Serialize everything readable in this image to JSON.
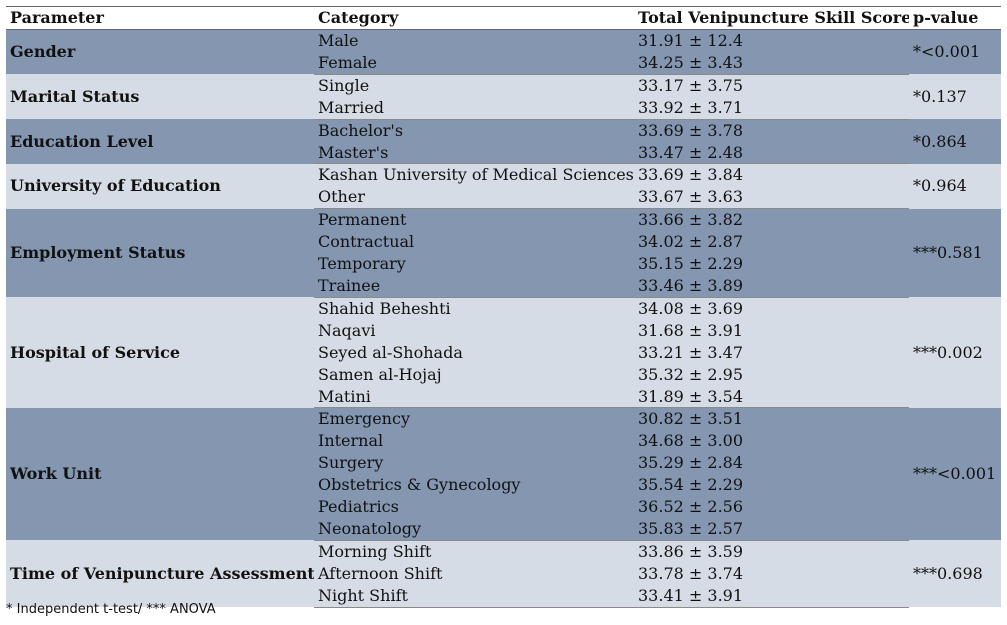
{
  "headers": [
    "Parameter",
    "Category",
    "Total Venipuncture Skill Score",
    "p-value"
  ],
  "groups": [
    {
      "parameter": "Gender",
      "p_value": "*<0.001",
      "shade": "dark",
      "rows": [
        {
          "category": "Male",
          "score": "31.91 ± 12.4"
        },
        {
          "category": "Female",
          "score": "34.25 ± 3.43"
        }
      ]
    },
    {
      "parameter": "Marital Status",
      "p_value": "*0.137",
      "shade": "light",
      "rows": [
        {
          "category": "Single",
          "score": "33.17 ± 3.75"
        },
        {
          "category": "Married",
          "score": "33.92 ± 3.71"
        }
      ]
    },
    {
      "parameter": "Education Level",
      "p_value": "*0.864",
      "shade": "dark",
      "rows": [
        {
          "category": "Bachelor's",
          "score": "33.69 ± 3.78"
        },
        {
          "category": "Master's",
          "score": "33.47 ± 2.48"
        }
      ]
    },
    {
      "parameter": "University of Education",
      "p_value": "*0.964",
      "shade": "light",
      "rows": [
        {
          "category": "Kashan University of Medical Sciences",
          "score": "33.69 ± 3.84"
        },
        {
          "category": "Other",
          "score": "33.67 ± 3.63"
        }
      ]
    },
    {
      "parameter": "Employment Status",
      "p_value": "***0.581",
      "shade": "dark",
      "rows": [
        {
          "category": "Permanent",
          "score": "33.66 ± 3.82"
        },
        {
          "category": "Contractual",
          "score": "34.02 ± 2.87"
        },
        {
          "category": "Temporary",
          "score": "35.15 ± 2.29"
        },
        {
          "category": "Trainee",
          "score": "33.46 ± 3.89"
        }
      ]
    },
    {
      "parameter": "Hospital of Service",
      "p_value": "***0.002",
      "shade": "light",
      "rows": [
        {
          "category": "Shahid Beheshti",
          "score": "34.08 ± 3.69"
        },
        {
          "category": "Naqavi",
          "score": "31.68 ± 3.91"
        },
        {
          "category": "Seyed al-Shohada",
          "score": "33.21 ± 3.47"
        },
        {
          "category": "Samen al-Hojaj",
          "score": "35.32 ± 2.95"
        },
        {
          "category": "Matini",
          "score": "31.89 ± 3.54"
        }
      ]
    },
    {
      "parameter": "Work Unit",
      "p_value": "***<0.001",
      "shade": "dark",
      "rows": [
        {
          "category": "Emergency",
          "score": "30.82 ± 3.51"
        },
        {
          "category": "Internal",
          "score": "34.68 ± 3.00"
        },
        {
          "category": "Surgery",
          "score": "35.29 ± 2.84"
        },
        {
          "category": "Obstetrics & Gynecology",
          "score": "35.54 ± 2.29"
        },
        {
          "category": "Pediatrics",
          "score": "36.52 ± 2.56"
        },
        {
          "category": "Neonatology",
          "score": "35.83 ± 2.57"
        }
      ]
    },
    {
      "parameter": "Time of Venipuncture Assessment",
      "p_value": "***0.698",
      "shade": "light",
      "rows": [
        {
          "category": "Morning Shift",
          "score": "33.86 ± 3.59"
        },
        {
          "category": "Afternoon Shift",
          "score": "33.78 ± 3.74"
        },
        {
          "category": "Night Shift",
          "score": "33.41 ± 3.91"
        }
      ]
    }
  ],
  "footnote": "* Independent t-test/ *** ANOVA",
  "colors": {
    "dark_row": "#8496b0",
    "light_row": "#d6dce5"
  }
}
